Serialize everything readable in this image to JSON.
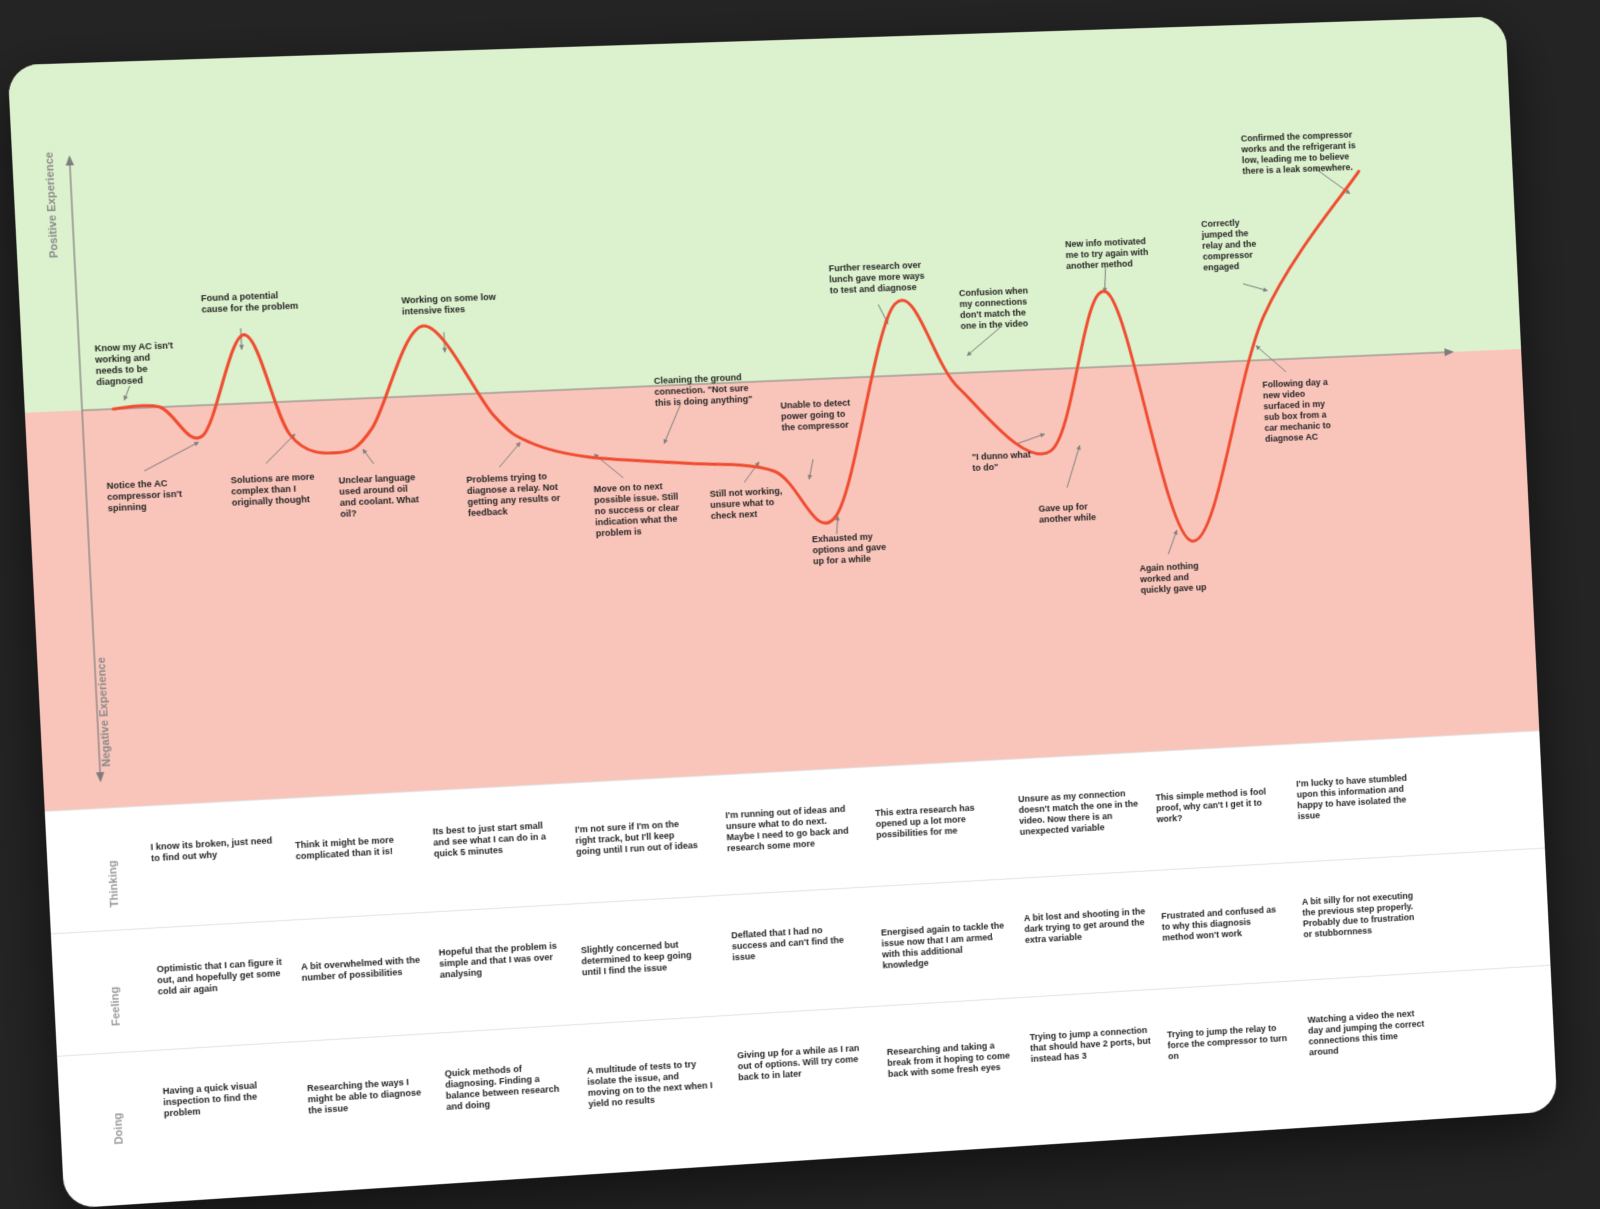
{
  "colors": {
    "positive_zone": "#dcf1cd",
    "negative_zone": "#f9c5bb",
    "curve": "#ef4c30",
    "axis": "#7d7d7d",
    "page": "#242424"
  },
  "axes": {
    "positive": "Positive Experience",
    "negative": "Negative Experience"
  },
  "chart_data": {
    "type": "line",
    "title": "",
    "xlabel": "",
    "ylabel": "",
    "series": [
      {
        "values": [
          0,
          0,
          -2,
          4.5,
          -2.2,
          -3.5,
          -2,
          4.6,
          -1.5,
          -3.4,
          -4.5,
          -5.2,
          -6,
          -9.2,
          4.8,
          -1,
          -5.5,
          5,
          -12,
          3,
          12.5
        ]
      }
    ],
    "annotations": [
      "Know my AC isn't working and needs to be diagnosed",
      "Notice the AC compressor isn't spinning",
      "Found a potential cause for the problem",
      "Solutions are more complex than I originally thought",
      "Unclear language used around oil and coolant. What oil?",
      "Working on some low intensive fixes",
      "Problems trying to diagnose a relay. Not getting any results or feedback",
      "Move on to next possible issue. Still no success or clear indication what the problem is",
      "Cleaning the ground connection. \"Not sure this is doing anything\"",
      "Still not working, unsure what to check next",
      "Unable to detect power going to the compressor",
      "Exhausted my options and gave up for a while",
      "Further research over lunch gave more ways to test and diagnose",
      "Confusion when my connections don't match the one in the video",
      "\"I dunno what to do\"",
      "Gave up for another while",
      "New info motivated me to try again with another method",
      "Again nothing worked and quickly gave up",
      "Correctly jumped the relay and the compressor engaged",
      "Following day a new video surfaced in my sub box from a car mechanic to diagnose AC",
      "Confirmed the compressor works and the refrigerant is low, leading me to believe there is a leak somewhere."
    ]
  },
  "table": {
    "rows": [
      {
        "label": "Thinking",
        "cells": [
          "I know its broken, just need to find out why",
          "Think it might be more complicated than it is!",
          "Its best to just start small and see what I can do in a quick 5 minutes",
          "I'm not sure if I'm on the right track, but I'll keep going until I run out of ideas",
          "I'm running out of ideas and unsure what to do next. Maybe I need to go back and research some more",
          "This extra research has opened up a lot more possibilities for me",
          "Unsure as my connection doesn't match the one in the video. Now there is an unexpected variable",
          "This simple method is fool proof, why can't I get it to work?",
          "I'm lucky to have stumbled upon this information and happy to have isolated the issue"
        ]
      },
      {
        "label": "Feeling",
        "cells": [
          "Optimistic that I can figure it out, and hopefully get some cold air again",
          "A bit overwhelmed with the number of possibilities",
          "Hopeful that the problem is simple and that I was over analysing",
          "Slightly concerned but determined to keep going until I find the issue",
          "Deflated that I had no success and can't find the issue",
          "Energised again to tackle the issue now that I am armed with this additional knowledge",
          "A bit lost and shooting in the dark trying to get around the extra variable",
          "Frustrated and confused as to why this diagnosis method won't work",
          "A bit silly for not executing the previous step properly. Probably due to frustration or stubbornness"
        ]
      },
      {
        "label": "Doing",
        "cells": [
          "Having a quick visual inspection to find the problem",
          "Researching the ways I might be able to diagnose the issue",
          "Quick methods of diagnosing. Finding a balance between research and doing",
          "A multitude of tests to try isolate the issue, and moving on to the next when I yield no results",
          "Giving up for a while as I ran out of options. Will try come back to in later",
          "Researching and taking a break from it hoping to come back with some fresh eyes",
          "Trying to jump a connection that should have 2 ports, but instead has 3",
          "Trying to jump the relay to force the compressor to turn on",
          "Watching a video the next day and jumping the correct connections this time around"
        ]
      }
    ]
  }
}
